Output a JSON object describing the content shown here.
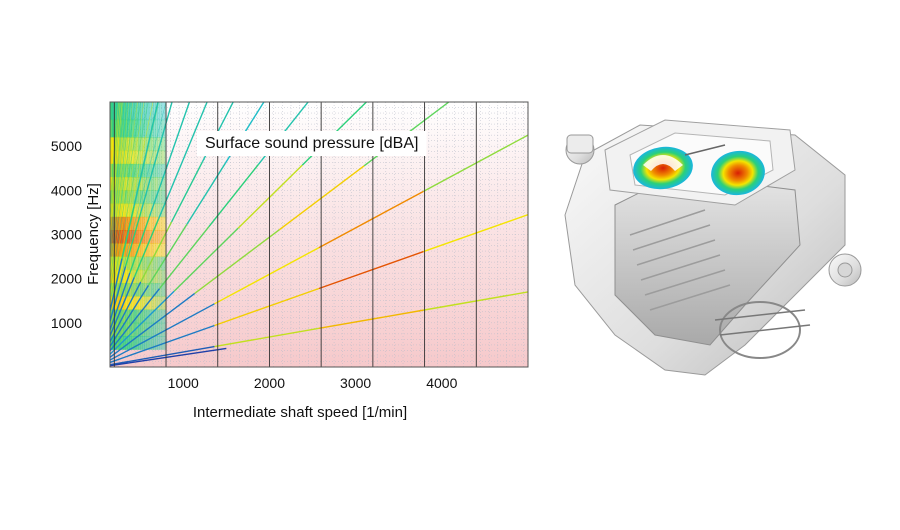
{
  "chart_data": {
    "type": "scatter",
    "title": "Surface sound pressure [dBA]",
    "xlabel": "Intermediate shaft speed [1/min]",
    "ylabel": "Frequency [Hz]",
    "xlim": [
      150,
      5000
    ],
    "ylim": [
      0,
      6000
    ],
    "x_ticks": [
      1000,
      2000,
      3000,
      4000
    ],
    "x_tick_labels": [
      "1000",
      "2000",
      "3000",
      "4000"
    ],
    "y_ticks": [
      1000,
      2000,
      3000,
      4000,
      5000
    ],
    "y_tick_labels": [
      "1000",
      "2000",
      "3000",
      "4000",
      "5000"
    ],
    "grid": true,
    "colormap": [
      "#1f3fa8",
      "#19b6e0",
      "#2ad07a",
      "#f4e500",
      "#f08a00",
      "#d81e05"
    ],
    "orders": [
      {
        "hz_per_rpm": 0.34,
        "tone": [
          0.05,
          0.55,
          0.7,
          0.55
        ]
      },
      {
        "hz_per_rpm": 0.69,
        "tone": [
          0.1,
          0.65,
          0.9,
          0.6
        ]
      },
      {
        "hz_per_rpm": 1.05,
        "tone": [
          0.1,
          0.6,
          0.8,
          0.5
        ]
      },
      {
        "hz_per_rpm": 1.47,
        "tone": [
          0.1,
          0.5,
          0.65,
          0.45
        ]
      },
      {
        "hz_per_rpm": 1.92,
        "tone": [
          0.15,
          0.45,
          0.55,
          0.4
        ]
      },
      {
        "hz_per_rpm": 2.45,
        "tone": [
          0.1,
          0.45,
          0.4,
          0.3
        ]
      },
      {
        "hz_per_rpm": 3.1,
        "tone": [
          0.1,
          0.45,
          0.3,
          0.25
        ]
      },
      {
        "hz_per_rpm": 3.8,
        "tone": [
          0.1,
          0.5,
          0.35,
          0.3
        ]
      },
      {
        "hz_per_rpm": 4.7,
        "tone": [
          0.1,
          0.4,
          0.3,
          0.3
        ]
      },
      {
        "hz_per_rpm": 5.6,
        "tone": [
          0.1,
          0.4,
          0.3,
          0.3
        ]
      },
      {
        "hz_per_rpm": 6.9,
        "tone": [
          0.1,
          0.4,
          0.3,
          0.3
        ]
      },
      {
        "hz_per_rpm": 8.5,
        "tone": [
          0.1,
          0.4,
          0.3,
          0.3
        ]
      }
    ]
  },
  "product_image": {
    "subject": "e-axle-housing-sound-pressure-render",
    "hotspot_colors": [
      "#d81e05",
      "#f08a00",
      "#f4e500",
      "#2ad07a",
      "#19b6e0"
    ]
  }
}
